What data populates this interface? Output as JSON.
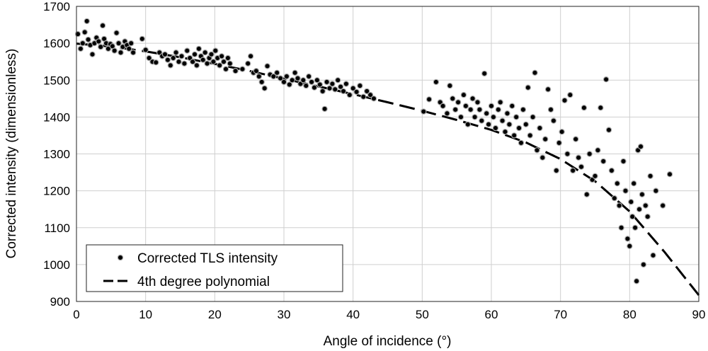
{
  "chart_data": {
    "type": "scatter",
    "title": "",
    "xlabel": "Angle of incidence (°)",
    "ylabel": "Corrected intensity (dimensionless)",
    "xlim": [
      0,
      90
    ],
    "ylim": [
      900,
      1700
    ],
    "xticks": [
      "0",
      "10",
      "20",
      "30",
      "40",
      "50",
      "60",
      "70",
      "80",
      "90"
    ],
    "yticks": [
      "900",
      "1000",
      "1100",
      "1200",
      "1300",
      "1400",
      "1500",
      "1600",
      "1700"
    ],
    "grid": true,
    "legend_position": "bottom-left",
    "series": [
      {
        "name": "Corrected TLS intensity",
        "kind": "points",
        "color": "#000000",
        "points": [
          [
            0.2,
            1625
          ],
          [
            0.6,
            1585
          ],
          [
            0.9,
            1600
          ],
          [
            1.2,
            1630
          ],
          [
            1.5,
            1660
          ],
          [
            1.7,
            1610
          ],
          [
            2.0,
            1595
          ],
          [
            2.3,
            1570
          ],
          [
            2.6,
            1600
          ],
          [
            2.9,
            1615
          ],
          [
            3.2,
            1605
          ],
          [
            3.5,
            1590
          ],
          [
            3.8,
            1648
          ],
          [
            4.0,
            1612
          ],
          [
            4.3,
            1600
          ],
          [
            4.6,
            1585
          ],
          [
            4.9,
            1598
          ],
          [
            5.2,
            1592
          ],
          [
            5.5,
            1580
          ],
          [
            5.8,
            1628
          ],
          [
            6.1,
            1600
          ],
          [
            6.4,
            1575
          ],
          [
            6.7,
            1590
          ],
          [
            7.0,
            1605
          ],
          [
            7.3,
            1595
          ],
          [
            7.6,
            1585
          ],
          [
            7.9,
            1600
          ],
          [
            8.2,
            1575
          ],
          [
            9.5,
            1612
          ],
          [
            10.0,
            1582
          ],
          [
            10.5,
            1560
          ],
          [
            11.0,
            1550
          ],
          [
            11.5,
            1548
          ],
          [
            12.0,
            1575
          ],
          [
            12.4,
            1565
          ],
          [
            12.8,
            1570
          ],
          [
            13.2,
            1555
          ],
          [
            13.6,
            1540
          ],
          [
            14.0,
            1560
          ],
          [
            14.4,
            1575
          ],
          [
            14.8,
            1550
          ],
          [
            15.2,
            1565
          ],
          [
            15.6,
            1545
          ],
          [
            16.0,
            1580
          ],
          [
            16.4,
            1560
          ],
          [
            16.8,
            1550
          ],
          [
            17.1,
            1570
          ],
          [
            17.4,
            1540
          ],
          [
            17.7,
            1585
          ],
          [
            18.0,
            1565
          ],
          [
            18.3,
            1555
          ],
          [
            18.6,
            1575
          ],
          [
            18.9,
            1545
          ],
          [
            19.2,
            1560
          ],
          [
            19.5,
            1570
          ],
          [
            19.8,
            1550
          ],
          [
            20.1,
            1580
          ],
          [
            20.4,
            1560
          ],
          [
            20.7,
            1540
          ],
          [
            21.0,
            1565
          ],
          [
            21.3,
            1550
          ],
          [
            21.6,
            1530
          ],
          [
            21.9,
            1560
          ],
          [
            22.2,
            1545
          ],
          [
            23.0,
            1525
          ],
          [
            24.0,
            1530
          ],
          [
            24.8,
            1545
          ],
          [
            25.2,
            1565
          ],
          [
            25.6,
            1520
          ],
          [
            26.0,
            1525
          ],
          [
            26.4,
            1510
          ],
          [
            26.8,
            1495
          ],
          [
            27.2,
            1478
          ],
          [
            27.6,
            1538
          ],
          [
            28.0,
            1515
          ],
          [
            28.5,
            1510
          ],
          [
            29.0,
            1520
          ],
          [
            29.5,
            1505
          ],
          [
            30.0,
            1495
          ],
          [
            30.4,
            1510
          ],
          [
            30.8,
            1488
          ],
          [
            31.2,
            1500
          ],
          [
            31.6,
            1520
          ],
          [
            32.0,
            1505
          ],
          [
            32.4,
            1490
          ],
          [
            32.8,
            1500
          ],
          [
            33.2,
            1485
          ],
          [
            33.6,
            1510
          ],
          [
            34.0,
            1495
          ],
          [
            34.4,
            1480
          ],
          [
            34.8,
            1500
          ],
          [
            35.2,
            1488
          ],
          [
            35.6,
            1470
          ],
          [
            35.9,
            1422
          ],
          [
            36.2,
            1495
          ],
          [
            36.6,
            1478
          ],
          [
            37.0,
            1490
          ],
          [
            37.4,
            1475
          ],
          [
            37.8,
            1500
          ],
          [
            38.2,
            1482
          ],
          [
            38.6,
            1470
          ],
          [
            39.0,
            1490
          ],
          [
            39.5,
            1460
          ],
          [
            40.0,
            1478
          ],
          [
            40.5,
            1468
          ],
          [
            41.0,
            1485
          ],
          [
            41.5,
            1455
          ],
          [
            42.0,
            1470
          ],
          [
            42.5,
            1460
          ],
          [
            43.0,
            1450
          ],
          [
            50.2,
            1415
          ],
          [
            51.0,
            1448
          ],
          [
            52.0,
            1495
          ],
          [
            52.6,
            1440
          ],
          [
            53.0,
            1430
          ],
          [
            53.6,
            1410
          ],
          [
            54.0,
            1485
          ],
          [
            54.4,
            1450
          ],
          [
            54.8,
            1420
          ],
          [
            55.2,
            1440
          ],
          [
            55.6,
            1400
          ],
          [
            56.0,
            1460
          ],
          [
            56.3,
            1430
          ],
          [
            56.6,
            1380
          ],
          [
            57.0,
            1420
          ],
          [
            57.3,
            1450
          ],
          [
            57.6,
            1400
          ],
          [
            58.0,
            1440
          ],
          [
            58.3,
            1420
          ],
          [
            58.6,
            1390
          ],
          [
            59.0,
            1518
          ],
          [
            59.3,
            1410
          ],
          [
            59.6,
            1380
          ],
          [
            60.0,
            1430
          ],
          [
            60.3,
            1400
          ],
          [
            60.6,
            1370
          ],
          [
            61.0,
            1420
          ],
          [
            61.3,
            1440
          ],
          [
            61.6,
            1390
          ],
          [
            62.0,
            1360
          ],
          [
            62.3,
            1410
          ],
          [
            62.6,
            1380
          ],
          [
            63.0,
            1430
          ],
          [
            63.3,
            1350
          ],
          [
            63.6,
            1400
          ],
          [
            64.0,
            1370
          ],
          [
            64.3,
            1330
          ],
          [
            64.6,
            1420
          ],
          [
            65.0,
            1380
          ],
          [
            65.3,
            1480
          ],
          [
            65.6,
            1350
          ],
          [
            66.0,
            1400
          ],
          [
            66.3,
            1520
          ],
          [
            66.6,
            1310
          ],
          [
            67.0,
            1370
          ],
          [
            67.4,
            1290
          ],
          [
            67.8,
            1340
          ],
          [
            68.2,
            1475
          ],
          [
            68.6,
            1420
          ],
          [
            69.0,
            1390
          ],
          [
            69.4,
            1255
          ],
          [
            69.8,
            1330
          ],
          [
            70.2,
            1360
          ],
          [
            70.6,
            1445
          ],
          [
            71.0,
            1300
          ],
          [
            71.4,
            1460
          ],
          [
            71.8,
            1255
          ],
          [
            72.2,
            1340
          ],
          [
            72.6,
            1290
          ],
          [
            73.0,
            1265
          ],
          [
            73.4,
            1425
          ],
          [
            73.8,
            1190
          ],
          [
            74.2,
            1300
          ],
          [
            74.6,
            1230
          ],
          [
            75.0,
            1240
          ],
          [
            75.4,
            1310
          ],
          [
            75.8,
            1425
          ],
          [
            76.2,
            1280
          ],
          [
            76.6,
            1502
          ],
          [
            77.0,
            1365
          ],
          [
            77.4,
            1255
          ],
          [
            77.8,
            1180
          ],
          [
            78.2,
            1220
          ],
          [
            78.5,
            1160
          ],
          [
            78.8,
            1100
          ],
          [
            79.1,
            1280
          ],
          [
            79.4,
            1200
          ],
          [
            79.7,
            1070
          ],
          [
            80.0,
            1050
          ],
          [
            80.2,
            1170
          ],
          [
            80.4,
            1130
          ],
          [
            80.6,
            1220
          ],
          [
            80.8,
            1100
          ],
          [
            81.0,
            955
          ],
          [
            81.2,
            1310
          ],
          [
            81.4,
            1150
          ],
          [
            81.6,
            1320
          ],
          [
            81.8,
            1190
          ],
          [
            82.0,
            1000
          ],
          [
            82.3,
            1160
          ],
          [
            82.6,
            1130
          ],
          [
            83.0,
            1240
          ],
          [
            83.4,
            1025
          ],
          [
            83.8,
            1200
          ],
          [
            84.8,
            1160
          ],
          [
            85.8,
            1245
          ]
        ]
      },
      {
        "name": "4th degree polynomial",
        "kind": "dashed-line",
        "color": "#000000",
        "points": [
          [
            0,
            1599
          ],
          [
            5,
            1591
          ],
          [
            10,
            1578
          ],
          [
            15,
            1562
          ],
          [
            20,
            1544
          ],
          [
            25,
            1525
          ],
          [
            30,
            1504
          ],
          [
            35,
            1483
          ],
          [
            40,
            1462
          ],
          [
            45,
            1440
          ],
          [
            50,
            1417
          ],
          [
            55,
            1392
          ],
          [
            60,
            1365
          ],
          [
            65,
            1331
          ],
          [
            70,
            1286
          ],
          [
            75,
            1226
          ],
          [
            80,
            1144
          ],
          [
            85,
            1035
          ],
          [
            90,
            917
          ]
        ]
      }
    ]
  }
}
